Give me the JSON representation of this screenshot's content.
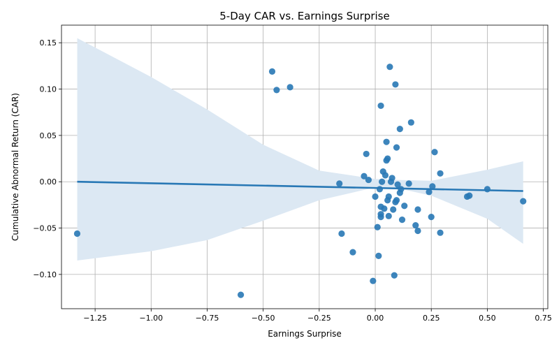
{
  "chart_data": {
    "type": "scatter",
    "title": "5-Day CAR vs. Earnings Surprise",
    "xlabel": "Earnings Surprise",
    "ylabel": "Cumulative Abnormal Return (CAR)",
    "xlim": [
      -1.4,
      0.77
    ],
    "ylim": [
      -0.137,
      0.169
    ],
    "xticks": [
      -1.25,
      -1.0,
      -0.75,
      -0.5,
      -0.25,
      0.0,
      0.25,
      0.5,
      0.75
    ],
    "xtick_labels": [
      "−1.25",
      "−1.00",
      "−0.75",
      "−0.50",
      "−0.25",
      "0.00",
      "0.25",
      "0.50",
      "0.75"
    ],
    "yticks": [
      -0.1,
      -0.05,
      0.0,
      0.05,
      0.1,
      0.15
    ],
    "ytick_labels": [
      "−0.10",
      "−0.05",
      "0.00",
      "0.05",
      "0.10",
      "0.15"
    ],
    "grid": true,
    "colors": {
      "points": "#2878b5",
      "line": "#2878b5",
      "band": "#dce8f3"
    },
    "points": [
      {
        "x": -1.33,
        "y": -0.056
      },
      {
        "x": -0.6,
        "y": -0.122
      },
      {
        "x": -0.46,
        "y": 0.119
      },
      {
        "x": -0.44,
        "y": 0.099
      },
      {
        "x": -0.38,
        "y": 0.102
      },
      {
        "x": -0.16,
        "y": -0.002
      },
      {
        "x": -0.15,
        "y": -0.056
      },
      {
        "x": -0.1,
        "y": -0.076
      },
      {
        "x": -0.05,
        "y": 0.006
      },
      {
        "x": -0.04,
        "y": 0.03
      },
      {
        "x": -0.03,
        "y": 0.002
      },
      {
        "x": -0.01,
        "y": -0.107
      },
      {
        "x": 0.0,
        "y": -0.016
      },
      {
        "x": 0.01,
        "y": -0.049
      },
      {
        "x": 0.015,
        "y": -0.08
      },
      {
        "x": 0.02,
        "y": -0.008
      },
      {
        "x": 0.025,
        "y": -0.027
      },
      {
        "x": 0.025,
        "y": -0.035
      },
      {
        "x": 0.025,
        "y": -0.038
      },
      {
        "x": 0.025,
        "y": 0.082
      },
      {
        "x": 0.03,
        "y": 0.0
      },
      {
        "x": 0.035,
        "y": 0.011
      },
      {
        "x": 0.04,
        "y": -0.029
      },
      {
        "x": 0.045,
        "y": 0.007
      },
      {
        "x": 0.05,
        "y": 0.043
      },
      {
        "x": 0.05,
        "y": 0.023
      },
      {
        "x": 0.055,
        "y": 0.025
      },
      {
        "x": 0.055,
        "y": -0.02
      },
      {
        "x": 0.06,
        "y": -0.016
      },
      {
        "x": 0.06,
        "y": -0.037
      },
      {
        "x": 0.065,
        "y": 0.124
      },
      {
        "x": 0.07,
        "y": 0.0
      },
      {
        "x": 0.075,
        "y": 0.004
      },
      {
        "x": 0.08,
        "y": -0.03
      },
      {
        "x": 0.085,
        "y": -0.101
      },
      {
        "x": 0.09,
        "y": 0.105
      },
      {
        "x": 0.09,
        "y": -0.022
      },
      {
        "x": 0.095,
        "y": 0.037
      },
      {
        "x": 0.095,
        "y": -0.02
      },
      {
        "x": 0.1,
        "y": -0.003
      },
      {
        "x": 0.11,
        "y": 0.057
      },
      {
        "x": 0.11,
        "y": -0.012
      },
      {
        "x": 0.115,
        "y": -0.008
      },
      {
        "x": 0.12,
        "y": -0.041
      },
      {
        "x": 0.13,
        "y": -0.026
      },
      {
        "x": 0.15,
        "y": -0.002
      },
      {
        "x": 0.16,
        "y": 0.064
      },
      {
        "x": 0.18,
        "y": -0.047
      },
      {
        "x": 0.19,
        "y": -0.03
      },
      {
        "x": 0.19,
        "y": -0.053
      },
      {
        "x": 0.24,
        "y": -0.011
      },
      {
        "x": 0.25,
        "y": -0.038
      },
      {
        "x": 0.255,
        "y": -0.005
      },
      {
        "x": 0.265,
        "y": 0.032
      },
      {
        "x": 0.29,
        "y": 0.009
      },
      {
        "x": 0.29,
        "y": -0.055
      },
      {
        "x": 0.41,
        "y": -0.016
      },
      {
        "x": 0.42,
        "y": -0.015
      },
      {
        "x": 0.5,
        "y": -0.008
      },
      {
        "x": 0.66,
        "y": -0.021
      }
    ],
    "regression": {
      "x": [
        -1.33,
        0.66
      ],
      "y": [
        0.0,
        -0.01
      ]
    },
    "confidence_band": {
      "x": [
        -1.33,
        -1.0,
        -0.75,
        -0.5,
        -0.25,
        0.0,
        0.1,
        0.25,
        0.5,
        0.66
      ],
      "lower": [
        -0.085,
        -0.075,
        -0.063,
        -0.042,
        -0.02,
        -0.006,
        -0.007,
        -0.015,
        -0.04,
        -0.067
      ],
      "upper": [
        0.155,
        0.113,
        0.078,
        0.04,
        0.012,
        0.003,
        0.002,
        0.001,
        0.013,
        0.022
      ]
    }
  }
}
